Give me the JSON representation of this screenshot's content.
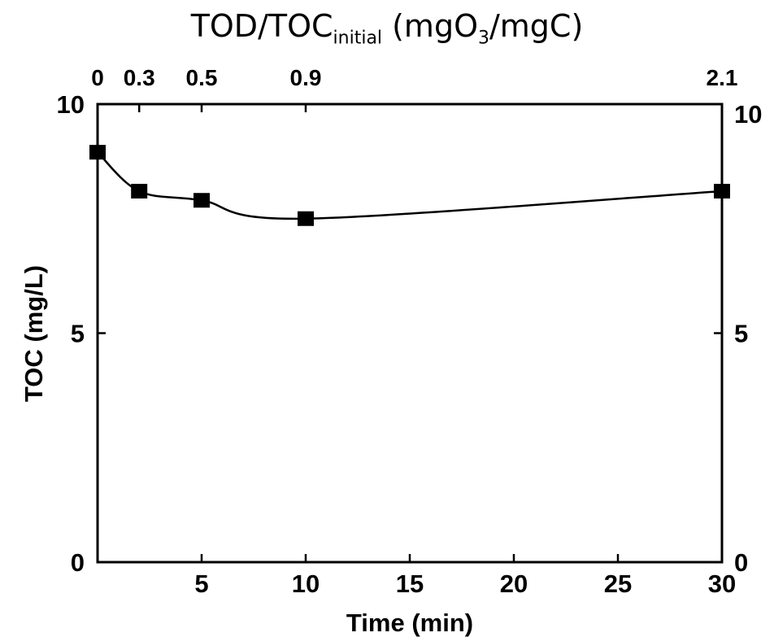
{
  "chart_data": {
    "type": "line",
    "top_axis_title": {
      "prefix": "TOD/TOC",
      "subscript": "initial",
      "units_open": " (mgO",
      "units_sub": "3",
      "units_close": "/mgC)"
    },
    "top_ticks": [
      {
        "label": "0",
        "time": 0
      },
      {
        "label": "0.3",
        "time": 2
      },
      {
        "label": "0.5",
        "time": 5
      },
      {
        "label": "0.9",
        "time": 10
      },
      {
        "label": "2.1",
        "time": 30
      }
    ],
    "xlabel": "Time (min)",
    "ylabel": "TOC (mg/L)",
    "xlim": [
      0,
      30
    ],
    "ylim": [
      0,
      10
    ],
    "x_ticks": [
      5,
      10,
      15,
      20,
      25,
      30
    ],
    "y_ticks": [
      0,
      5,
      10
    ],
    "right_y_ticks": [
      0,
      5,
      10
    ],
    "grid": false,
    "marker": "square",
    "series": [
      {
        "x": [
          0,
          2,
          5,
          10,
          30
        ],
        "y": [
          8.95,
          8.1,
          7.9,
          7.5,
          8.1
        ]
      }
    ]
  }
}
